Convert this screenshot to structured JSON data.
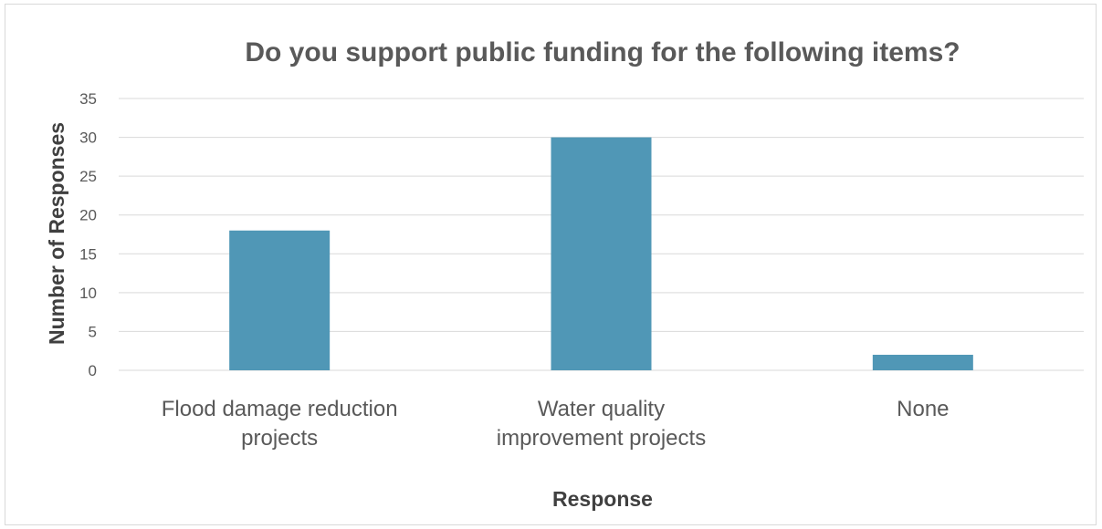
{
  "chart_data": {
    "type": "bar",
    "title": "Do you support public funding for the following items?",
    "xlabel": "Response",
    "ylabel": "Number of Responses",
    "categories": [
      [
        "Flood damage reduction",
        "projects"
      ],
      [
        "Water quality",
        "improvement projects"
      ],
      [
        "None"
      ]
    ],
    "values": [
      18,
      30,
      2
    ],
    "ylim": [
      0,
      35
    ],
    "yticks": [
      0,
      5,
      10,
      15,
      20,
      25,
      30,
      35
    ],
    "grid": true,
    "legend": "none",
    "bar_color": "#5097b6"
  }
}
